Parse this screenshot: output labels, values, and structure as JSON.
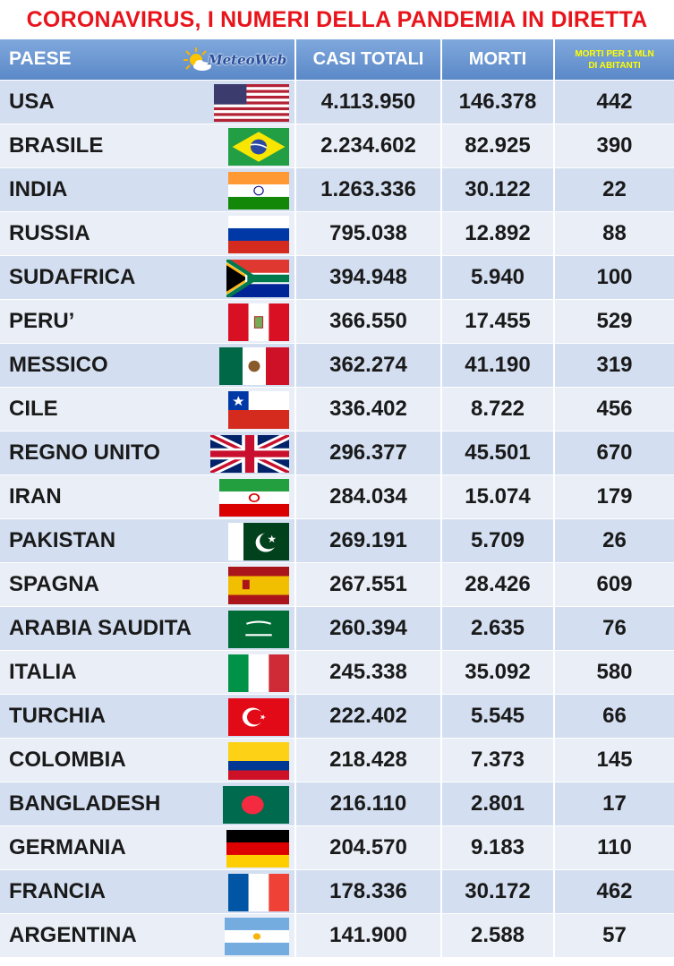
{
  "title": "CORONAVIRUS, I NUMERI DELLA PANDEMIA IN DIRETTA",
  "logo_text": "MeteoWeb",
  "headers": {
    "country": "PAESE",
    "cases": "CASI TOTALI",
    "deaths": "MORTI",
    "per_million_line1": "MORTI PER 1 MLN",
    "per_million_line2": "DI ABITANTI"
  },
  "colors": {
    "title": "#e8141b",
    "header_bg": "#5b88c8",
    "row_odd": "#d3def0",
    "row_even": "#e9eef7",
    "subheader_text": "#ffff00"
  },
  "rows": [
    {
      "country": "USA",
      "flag": "usa-flag-icon",
      "cases": "4.113.950",
      "deaths": "146.378",
      "per_million": "442"
    },
    {
      "country": "BRASILE",
      "flag": "brazil-flag-icon",
      "cases": "2.234.602",
      "deaths": "82.925",
      "per_million": "390"
    },
    {
      "country": "INDIA",
      "flag": "india-flag-icon",
      "cases": "1.263.336",
      "deaths": "30.122",
      "per_million": "22"
    },
    {
      "country": "RUSSIA",
      "flag": "russia-flag-icon",
      "cases": "795.038",
      "deaths": "12.892",
      "per_million": "88"
    },
    {
      "country": "SUDAFRICA",
      "flag": "south-africa-flag-icon",
      "cases": "394.948",
      "deaths": "5.940",
      "per_million": "100"
    },
    {
      "country": "PERU’",
      "flag": "peru-flag-icon",
      "cases": "366.550",
      "deaths": "17.455",
      "per_million": "529"
    },
    {
      "country": "MESSICO",
      "flag": "mexico-flag-icon",
      "cases": "362.274",
      "deaths": "41.190",
      "per_million": "319"
    },
    {
      "country": "CILE",
      "flag": "chile-flag-icon",
      "cases": "336.402",
      "deaths": "8.722",
      "per_million": "456"
    },
    {
      "country": "REGNO UNITO",
      "flag": "uk-flag-icon",
      "cases": "296.377",
      "deaths": "45.501",
      "per_million": "670"
    },
    {
      "country": "IRAN",
      "flag": "iran-flag-icon",
      "cases": "284.034",
      "deaths": "15.074",
      "per_million": "179"
    },
    {
      "country": "PAKISTAN",
      "flag": "pakistan-flag-icon",
      "cases": "269.191",
      "deaths": "5.709",
      "per_million": "26"
    },
    {
      "country": "SPAGNA",
      "flag": "spain-flag-icon",
      "cases": "267.551",
      "deaths": "28.426",
      "per_million": "609"
    },
    {
      "country": "ARABIA SAUDITA",
      "flag": "saudi-arabia-flag-icon",
      "cases": "260.394",
      "deaths": "2.635",
      "per_million": "76"
    },
    {
      "country": "ITALIA",
      "flag": "italy-flag-icon",
      "cases": "245.338",
      "deaths": "35.092",
      "per_million": "580"
    },
    {
      "country": "TURCHIA",
      "flag": "turkey-flag-icon",
      "cases": "222.402",
      "deaths": "5.545",
      "per_million": "66"
    },
    {
      "country": "COLOMBIA",
      "flag": "colombia-flag-icon",
      "cases": "218.428",
      "deaths": "7.373",
      "per_million": "145"
    },
    {
      "country": "BANGLADESH",
      "flag": "bangladesh-flag-icon",
      "cases": "216.110",
      "deaths": "2.801",
      "per_million": "17"
    },
    {
      "country": "GERMANIA",
      "flag": "germany-flag-icon",
      "cases": "204.570",
      "deaths": "9.183",
      "per_million": "110"
    },
    {
      "country": "FRANCIA",
      "flag": "france-flag-icon",
      "cases": "178.336",
      "deaths": "30.172",
      "per_million": "462"
    },
    {
      "country": "ARGENTINA",
      "flag": "argentina-flag-icon",
      "cases": "141.900",
      "deaths": "2.588",
      "per_million": "57"
    }
  ]
}
